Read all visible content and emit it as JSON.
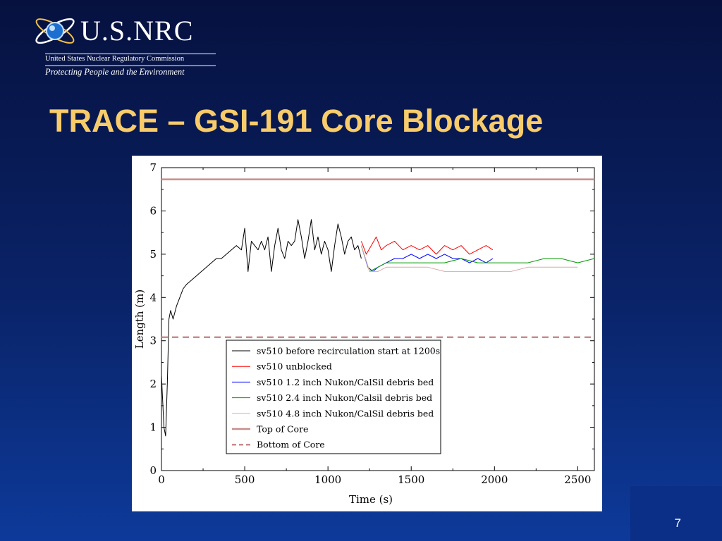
{
  "logo": {
    "name": "U.S.NRC",
    "subtitle": "United States Nuclear Regulatory Commission",
    "tagline": "Protecting People and the Environment"
  },
  "slide": {
    "title": "TRACE – GSI-191 Core Blockage",
    "page_number": "7"
  },
  "colors": {
    "background": "#0a2368",
    "title": "#f8cc6a",
    "series_black": "#000000",
    "series_red": "#ff0000",
    "series_blue": "#0000ff",
    "series_green": "#009900",
    "series_pink": "#dcaaaa",
    "top_core": "#c88c8c",
    "bottom_core": "#c88c8c"
  },
  "chart_data": {
    "type": "line",
    "xlabel": "Time (s)",
    "ylabel": "Length (m)",
    "xlim": [
      0,
      2600
    ],
    "ylim": [
      0,
      7
    ],
    "xticks": [
      0,
      500,
      1000,
      1500,
      2000,
      2500
    ],
    "yticks": [
      0,
      1,
      2,
      3,
      4,
      5,
      6,
      7
    ],
    "grid": false,
    "legend_position": "lower-center",
    "series": [
      {
        "name": "sv510 before recirculation start at 1200s",
        "color": "#000000",
        "x": [
          0,
          15,
          25,
          35,
          45,
          55,
          70,
          90,
          110,
          130,
          150,
          180,
          210,
          240,
          270,
          300,
          330,
          360,
          390,
          420,
          450,
          480,
          500,
          520,
          540,
          560,
          580,
          600,
          620,
          640,
          660,
          680,
          700,
          720,
          740,
          760,
          780,
          800,
          820,
          840,
          860,
          880,
          900,
          920,
          940,
          960,
          980,
          1000,
          1020,
          1040,
          1060,
          1080,
          1100,
          1120,
          1140,
          1160,
          1180,
          1200
        ],
        "y": [
          2.2,
          1.0,
          0.8,
          2.0,
          3.5,
          3.7,
          3.5,
          3.8,
          4.0,
          4.2,
          4.3,
          4.4,
          4.5,
          4.6,
          4.7,
          4.8,
          4.9,
          4.9,
          5.0,
          5.1,
          5.2,
          5.1,
          5.6,
          4.6,
          5.3,
          5.2,
          5.1,
          5.3,
          5.1,
          5.4,
          4.6,
          5.2,
          5.6,
          5.1,
          4.9,
          5.3,
          5.2,
          5.3,
          5.8,
          5.4,
          4.9,
          5.3,
          5.8,
          5.1,
          5.4,
          5.0,
          5.3,
          5.1,
          4.6,
          5.2,
          5.7,
          5.4,
          5.0,
          5.3,
          5.4,
          5.1,
          5.2,
          4.9
        ]
      },
      {
        "name": "sv510 unblocked",
        "color": "#ff0000",
        "x": [
          1200,
          1230,
          1260,
          1290,
          1320,
          1350,
          1400,
          1450,
          1500,
          1550,
          1600,
          1650,
          1700,
          1750,
          1800,
          1850,
          1900,
          1950,
          1990
        ],
        "y": [
          5.3,
          5.0,
          5.2,
          5.4,
          5.1,
          5.2,
          5.3,
          5.1,
          5.2,
          5.1,
          5.2,
          5.0,
          5.2,
          5.1,
          5.2,
          5.0,
          5.1,
          5.2,
          5.1
        ]
      },
      {
        "name": "sv510 1.2 inch Nukon/CalSil debris bed",
        "color": "#0000ff",
        "x": [
          1200,
          1240,
          1270,
          1300,
          1350,
          1400,
          1450,
          1500,
          1550,
          1600,
          1650,
          1700,
          1750,
          1800,
          1850,
          1900,
          1950,
          1990
        ],
        "y": [
          5.2,
          4.7,
          4.6,
          4.7,
          4.8,
          4.9,
          4.9,
          5.0,
          4.9,
          5.0,
          4.9,
          5.0,
          4.9,
          4.9,
          4.8,
          4.9,
          4.8,
          4.9
        ]
      },
      {
        "name": "sv510 2.4 inch Nukon/Calsil debris bed",
        "color": "#009900",
        "x": [
          1200,
          1250,
          1300,
          1350,
          1400,
          1500,
          1600,
          1700,
          1800,
          1900,
          2000,
          2100,
          2200,
          2300,
          2400,
          2500,
          2600
        ],
        "y": [
          5.2,
          4.6,
          4.7,
          4.8,
          4.8,
          4.8,
          4.8,
          4.8,
          4.9,
          4.8,
          4.8,
          4.8,
          4.8,
          4.9,
          4.9,
          4.8,
          4.9
        ]
      },
      {
        "name": "sv510 4.8 inch Nukon/CalSil debris bed",
        "color": "#dcaaaa",
        "x": [
          1200,
          1250,
          1300,
          1350,
          1400,
          1500,
          1600,
          1700,
          1800,
          1900,
          2000,
          2100,
          2200,
          2300,
          2400,
          2500
        ],
        "y": [
          5.2,
          4.6,
          4.6,
          4.7,
          4.7,
          4.7,
          4.7,
          4.6,
          4.6,
          4.6,
          4.6,
          4.6,
          4.7,
          4.7,
          4.7,
          4.7
        ]
      },
      {
        "name": "Top of Core",
        "color": "#c88c8c",
        "style": "solid",
        "x": [
          0,
          2600
        ],
        "y": [
          6.73,
          6.73
        ]
      },
      {
        "name": "Bottom of Core",
        "color": "#c88c8c",
        "style": "dashed",
        "x": [
          0,
          2600
        ],
        "y": [
          3.08,
          3.08
        ]
      }
    ]
  }
}
